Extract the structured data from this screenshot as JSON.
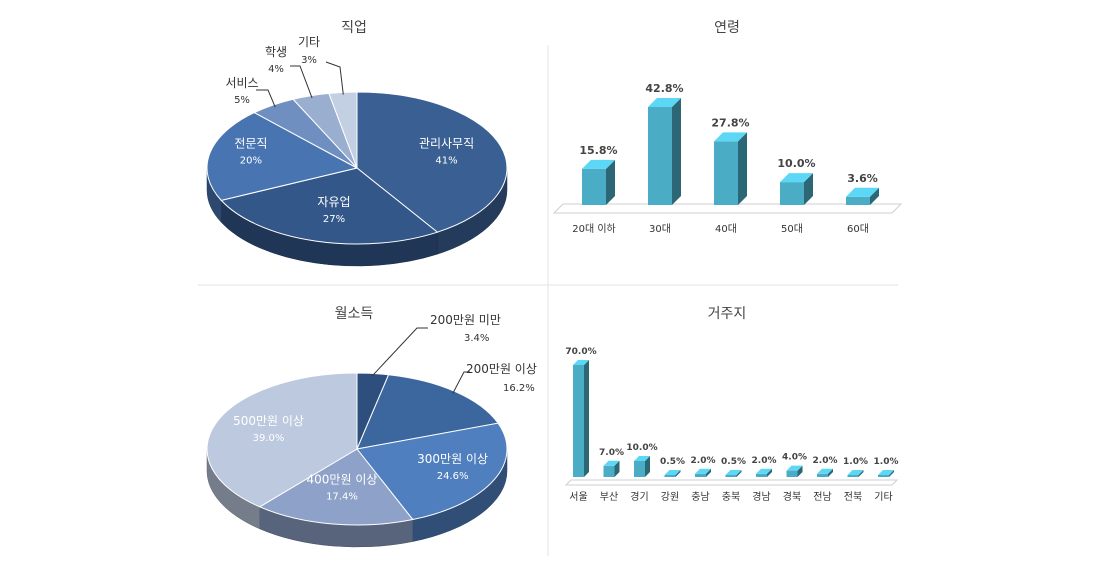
{
  "chart_data": [
    {
      "type": "pie",
      "title": "직업",
      "slices": [
        {
          "label": "관리사무직",
          "value": 41,
          "value_label": "41%",
          "color": "#3a5f92"
        },
        {
          "label": "자유업",
          "value": 27,
          "value_label": "27%",
          "color": "#34578a"
        },
        {
          "label": "전문직",
          "value": 20,
          "value_label": "20%",
          "color": "#4874b2"
        },
        {
          "label": "서비스",
          "value": 5,
          "value_label": "5%",
          "color": "#6f8fc0"
        },
        {
          "label": "학생",
          "value": 4,
          "value_label": "4%",
          "color": "#9aaed0"
        },
        {
          "label": "기타",
          "value": 3,
          "value_label": "3%",
          "color": "#c3cfe2"
        }
      ]
    },
    {
      "type": "bar",
      "title": "연령",
      "categories": [
        "20대 이하",
        "30대",
        "40대",
        "50대",
        "60대"
      ],
      "values": [
        15.8,
        42.8,
        27.8,
        10.0,
        3.6
      ],
      "value_labels": [
        "15.8%",
        "42.8%",
        "27.8%",
        "10.0%",
        "3.6%"
      ],
      "color": "#4aacc5"
    },
    {
      "type": "pie",
      "title": "월소득",
      "slices": [
        {
          "label": "200만원 미만",
          "value": 3.4,
          "value_label": "3.4%",
          "color": "#2e4f7e"
        },
        {
          "label": "200만원 이상",
          "value": 16.2,
          "value_label": "16.2%",
          "color": "#3c679e"
        },
        {
          "label": "300만원 이상",
          "value": 24.6,
          "value_label": "24.6%",
          "color": "#4f7fbe"
        },
        {
          "label": "400만원 이상",
          "value": 17.4,
          "value_label": "17.4%",
          "color": "#8ea1c8"
        },
        {
          "label": "500만원 이상",
          "value": 39.0,
          "value_label": "39.0%",
          "color": "#bcc9de"
        }
      ]
    },
    {
      "type": "bar",
      "title": "거주지",
      "categories": [
        "서울",
        "부산",
        "경기",
        "강원",
        "충남",
        "충북",
        "경남",
        "경북",
        "전남",
        "전북",
        "기타"
      ],
      "values": [
        70.0,
        7.0,
        10.0,
        0.5,
        2.0,
        0.5,
        2.0,
        4.0,
        2.0,
        1.0,
        1.0
      ],
      "value_labels": [
        "70.0%",
        "7.0%",
        "10.0%",
        "0.5%",
        "2.0%",
        "0.5%",
        "2.0%",
        "4.0%",
        "2.0%",
        "1.0%",
        "1.0%"
      ],
      "color": "#4aacc5"
    }
  ]
}
